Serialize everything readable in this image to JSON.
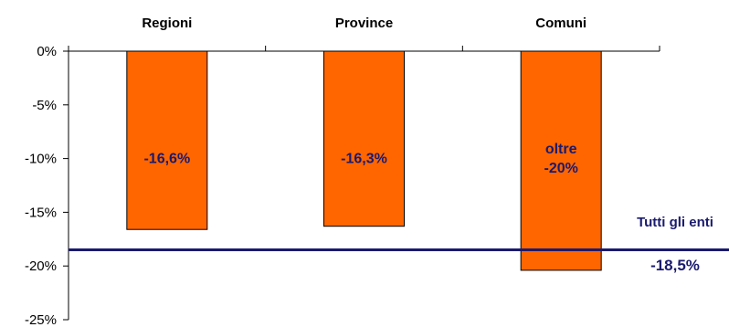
{
  "chart_data": {
    "type": "bar",
    "title": "",
    "xlabel": "",
    "ylabel": "",
    "categories": [
      "Regioni",
      "Province",
      "Comuni"
    ],
    "values": [
      -16.6,
      -16.3,
      -20.4
    ],
    "data_labels": [
      [
        "-16,6%"
      ],
      [
        "-16,3%"
      ],
      [
        "oltre",
        "-20%"
      ]
    ],
    "ylim": [
      -25,
      0
    ],
    "y_ticks": [
      0,
      -5,
      -10,
      -15,
      -20,
      -25
    ],
    "y_tick_labels": [
      "0%",
      "-5%",
      "-10%",
      "-15%",
      "-20%",
      "-25%"
    ],
    "category_axis_position": "top",
    "grid": false,
    "legend": "none",
    "reference_line": {
      "value": -18.5,
      "label": "Tutti gli enti",
      "value_label": "-18,5%"
    },
    "colors": {
      "bar_fill": "#ff6600",
      "bar_stroke": "#000000",
      "data_label": "#1a1a6e",
      "reference_line": "#1a1a6e",
      "axis": "#000000"
    }
  }
}
